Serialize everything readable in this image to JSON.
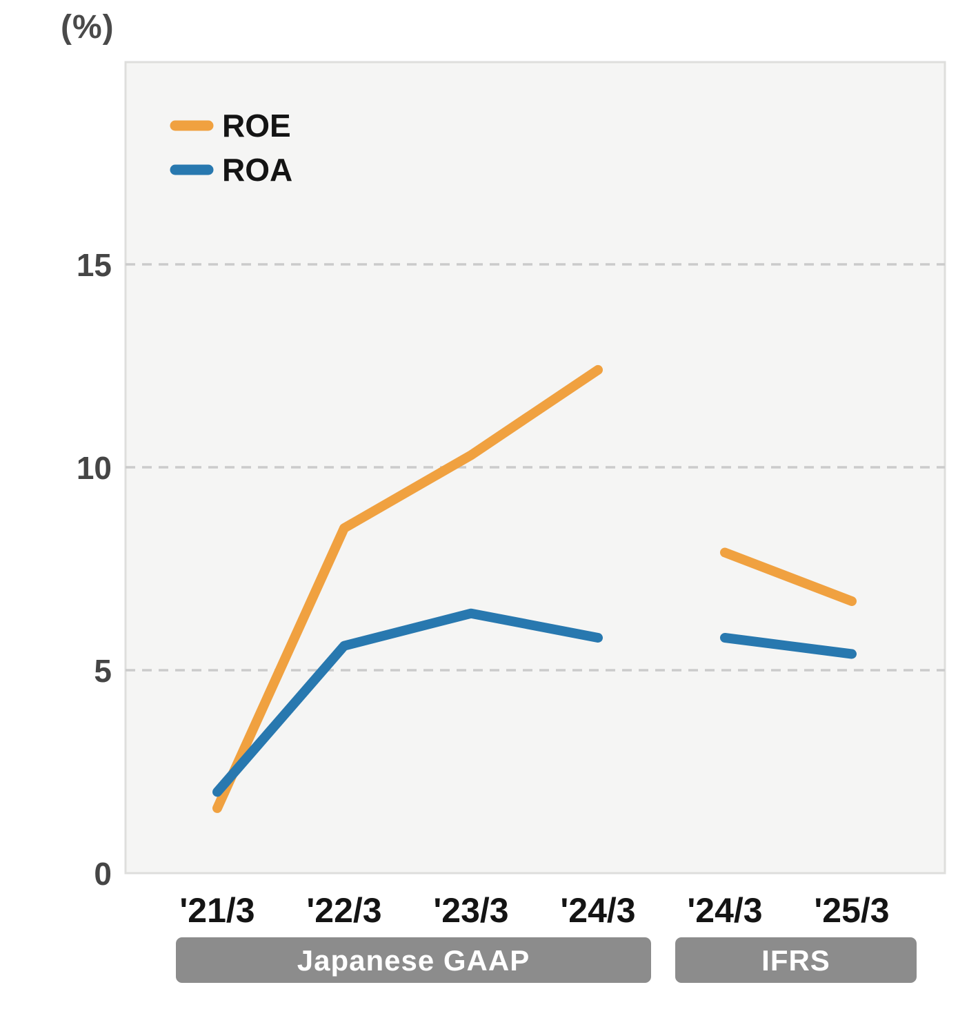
{
  "chart_data": {
    "type": "line",
    "title": "",
    "ylabel": "(%)",
    "xlabel": "",
    "categories": [
      "'21/3",
      "'22/3",
      "'23/3",
      "'24/3",
      "'24/3",
      "'25/3"
    ],
    "x_groups": [
      {
        "label": "Japanese GAAP",
        "from_index": 0,
        "to_index": 3
      },
      {
        "label": "IFRS",
        "from_index": 4,
        "to_index": 5
      }
    ],
    "gap_after_index": 3,
    "series": [
      {
        "name": "ROE",
        "color": "#F0A140",
        "values": [
          1.6,
          8.5,
          10.3,
          12.4,
          7.9,
          6.7
        ]
      },
      {
        "name": "ROA",
        "color": "#2878AF",
        "values": [
          2.0,
          5.6,
          6.4,
          5.8,
          5.8,
          5.4
        ]
      }
    ],
    "ylim": [
      0,
      20
    ],
    "yticks": [
      0,
      5,
      10,
      15
    ],
    "grid": "horizontal dashed at 5, 10, 15",
    "legend_position": "top-left"
  },
  "colors": {
    "plot_background": "#F5F5F4",
    "plot_border": "#DEDEDC",
    "gridline": "#CBCBCB",
    "group_bar": "#8C8C8C",
    "roe_line": "#F0A140",
    "roa_line": "#2878AF"
  }
}
